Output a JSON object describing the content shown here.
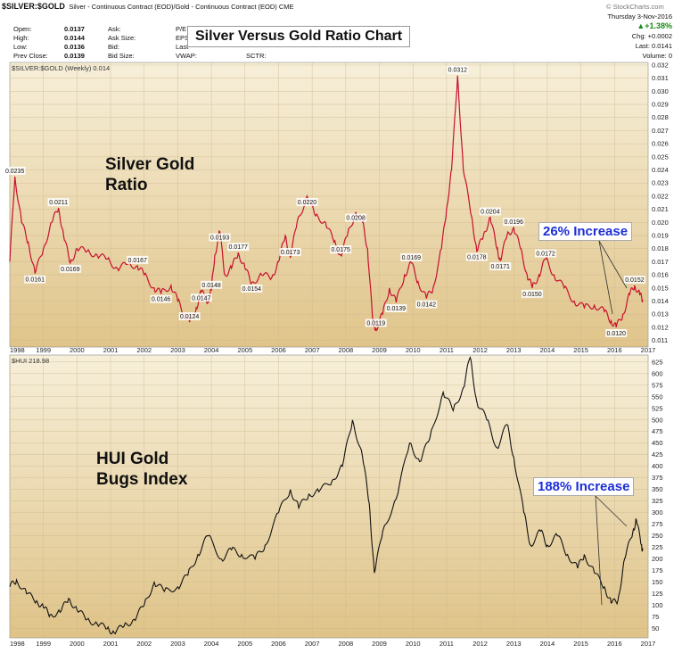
{
  "header": {
    "symbol": "$SILVER:$GOLD",
    "description": "Silver - Continuous Contract (EOD)/Gold - Continuous Contract (EOD) CME",
    "watermark": "© StockCharts.com",
    "date": "Thursday 3-Nov-2016",
    "change_pct": "▲+1.38%",
    "chg": "Chg: +0.0002",
    "last": "Last: 0.0141",
    "volume": "Volume: 0",
    "stats": [
      {
        "label": "Open:",
        "value": "0.0137"
      },
      {
        "label": "High:",
        "value": "0.0144"
      },
      {
        "label": "Low:",
        "value": "0.0136"
      },
      {
        "label": "Prev Close:",
        "value": "0.0139"
      }
    ],
    "stats2": [
      "Ask:",
      "Ask Size:",
      "Bid:",
      "Bid Size:"
    ],
    "stats3": [
      "P/E",
      "EPS",
      "Last",
      "VWAP:"
    ],
    "sctr": "SCTR:"
  },
  "title": "Silver Versus Gold Ratio Chart",
  "chart_data": [
    {
      "type": "line",
      "panel_label": "$SILVER:$GOLD (Weekly) 0.014",
      "big_label": [
        "Silver Gold",
        "Ratio"
      ],
      "annotation": "26% Increase",
      "x_ticks": [
        "1998",
        "1999",
        "2000",
        "2001",
        "2002",
        "2003",
        "2004",
        "2005",
        "2006",
        "2007",
        "2008",
        "2009",
        "2010",
        "2011",
        "2012",
        "2013",
        "2014",
        "2015",
        "2016",
        "2017"
      ],
      "ylim": [
        0.0105,
        0.0322
      ],
      "y_ticks": [
        "0.011",
        "0.012",
        "0.013",
        "0.014",
        "0.015",
        "0.016",
        "0.017",
        "0.018",
        "0.019",
        "0.020",
        "0.021",
        "0.022",
        "0.023",
        "0.024",
        "0.025",
        "0.026",
        "0.027",
        "0.028",
        "0.029",
        "0.030",
        "0.031",
        "0.032"
      ],
      "points": [
        [
          1998.0,
          0.017
        ],
        [
          1998.15,
          0.0235
        ],
        [
          1998.35,
          0.02
        ],
        [
          1998.55,
          0.0185
        ],
        [
          1998.75,
          0.0161
        ],
        [
          1999.0,
          0.018
        ],
        [
          1999.25,
          0.02
        ],
        [
          1999.45,
          0.0211
        ],
        [
          1999.6,
          0.019
        ],
        [
          1999.8,
          0.0169
        ],
        [
          2000.0,
          0.018
        ],
        [
          2000.3,
          0.0178
        ],
        [
          2000.6,
          0.0175
        ],
        [
          2000.9,
          0.0172
        ],
        [
          2001.2,
          0.0165
        ],
        [
          2001.5,
          0.0168
        ],
        [
          2001.8,
          0.0167
        ],
        [
          2002.0,
          0.016
        ],
        [
          2002.3,
          0.015
        ],
        [
          2002.5,
          0.0146
        ],
        [
          2002.8,
          0.0152
        ],
        [
          2003.0,
          0.014
        ],
        [
          2003.2,
          0.013
        ],
        [
          2003.35,
          0.0124
        ],
        [
          2003.55,
          0.0135
        ],
        [
          2003.7,
          0.0147
        ],
        [
          2003.9,
          0.014
        ],
        [
          2004.0,
          0.0148
        ],
        [
          2004.1,
          0.0175
        ],
        [
          2004.25,
          0.0193
        ],
        [
          2004.4,
          0.016
        ],
        [
          2004.6,
          0.0165
        ],
        [
          2004.8,
          0.0177
        ],
        [
          2005.0,
          0.0165
        ],
        [
          2005.2,
          0.0154
        ],
        [
          2005.5,
          0.016
        ],
        [
          2005.8,
          0.0158
        ],
        [
          2006.0,
          0.017
        ],
        [
          2006.2,
          0.019
        ],
        [
          2006.35,
          0.0173
        ],
        [
          2006.55,
          0.02
        ],
        [
          2006.85,
          0.022
        ],
        [
          2007.1,
          0.0205
        ],
        [
          2007.4,
          0.02
        ],
        [
          2007.65,
          0.0185
        ],
        [
          2007.85,
          0.0175
        ],
        [
          2008.05,
          0.019
        ],
        [
          2008.3,
          0.0208
        ],
        [
          2008.5,
          0.02
        ],
        [
          2008.65,
          0.018
        ],
        [
          2008.8,
          0.0125
        ],
        [
          2008.9,
          0.0119
        ],
        [
          2009.1,
          0.013
        ],
        [
          2009.3,
          0.015
        ],
        [
          2009.5,
          0.0139
        ],
        [
          2009.75,
          0.016
        ],
        [
          2009.95,
          0.0169
        ],
        [
          2010.15,
          0.0155
        ],
        [
          2010.4,
          0.0142
        ],
        [
          2010.6,
          0.015
        ],
        [
          2010.85,
          0.018
        ],
        [
          2011.0,
          0.021
        ],
        [
          2011.15,
          0.024
        ],
        [
          2011.33,
          0.0312
        ],
        [
          2011.5,
          0.024
        ],
        [
          2011.75,
          0.0204
        ],
        [
          2011.9,
          0.0178
        ],
        [
          2012.1,
          0.019
        ],
        [
          2012.3,
          0.0204
        ],
        [
          2012.5,
          0.018
        ],
        [
          2012.6,
          0.0171
        ],
        [
          2012.8,
          0.019
        ],
        [
          2013.0,
          0.0196
        ],
        [
          2013.2,
          0.018
        ],
        [
          2013.4,
          0.016
        ],
        [
          2013.55,
          0.015
        ],
        [
          2013.75,
          0.016
        ],
        [
          2013.95,
          0.0172
        ],
        [
          2014.2,
          0.016
        ],
        [
          2014.5,
          0.015
        ],
        [
          2014.8,
          0.014
        ],
        [
          2015.1,
          0.0135
        ],
        [
          2015.4,
          0.0137
        ],
        [
          2015.7,
          0.0132
        ],
        [
          2015.9,
          0.0125
        ],
        [
          2016.05,
          0.012
        ],
        [
          2016.25,
          0.013
        ],
        [
          2016.45,
          0.0145
        ],
        [
          2016.6,
          0.0152
        ],
        [
          2016.75,
          0.0145
        ],
        [
          2016.84,
          0.0141
        ]
      ],
      "point_labels": [
        {
          "x": 1998.15,
          "y": 0.0235,
          "text": "0.0235"
        },
        {
          "x": 1998.75,
          "y": 0.0161,
          "text": "0.0161"
        },
        {
          "x": 1999.45,
          "y": 0.0211,
          "text": "0.0211"
        },
        {
          "x": 1999.8,
          "y": 0.0169,
          "text": "0.0169"
        },
        {
          "x": 2001.8,
          "y": 0.0167,
          "text": "0.0167"
        },
        {
          "x": 2002.5,
          "y": 0.0146,
          "text": "0.0146"
        },
        {
          "x": 2003.35,
          "y": 0.0124,
          "text": "0.0124"
        },
        {
          "x": 2003.7,
          "y": 0.0147,
          "text": "0.0147"
        },
        {
          "x": 2004.0,
          "y": 0.0148,
          "text": "0.0148"
        },
        {
          "x": 2004.25,
          "y": 0.0193,
          "text": "0.0193"
        },
        {
          "x": 2004.8,
          "y": 0.0177,
          "text": "0.0177"
        },
        {
          "x": 2005.2,
          "y": 0.0154,
          "text": "0.0154"
        },
        {
          "x": 2006.35,
          "y": 0.0173,
          "text": "0.0173"
        },
        {
          "x": 2006.85,
          "y": 0.022,
          "text": "0.0220"
        },
        {
          "x": 2007.85,
          "y": 0.0175,
          "text": "0.0175"
        },
        {
          "x": 2008.3,
          "y": 0.0208,
          "text": "0.0208"
        },
        {
          "x": 2008.9,
          "y": 0.0119,
          "text": "0.0119"
        },
        {
          "x": 2009.5,
          "y": 0.0139,
          "text": "0.0139"
        },
        {
          "x": 2009.95,
          "y": 0.0169,
          "text": "0.0169"
        },
        {
          "x": 2010.4,
          "y": 0.0142,
          "text": "0.0142"
        },
        {
          "x": 2011.33,
          "y": 0.0312,
          "text": "0.0312"
        },
        {
          "x": 2011.9,
          "y": 0.0178,
          "text": "0.0178"
        },
        {
          "x": 2012.3,
          "y": 0.0204,
          "text": "0.0204"
        },
        {
          "x": 2012.6,
          "y": 0.0171,
          "text": "0.0171"
        },
        {
          "x": 2013.0,
          "y": 0.0196,
          "text": "0.0196"
        },
        {
          "x": 2013.55,
          "y": 0.015,
          "text": "0.0150"
        },
        {
          "x": 2013.95,
          "y": 0.0172,
          "text": "0.0172"
        },
        {
          "x": 2016.05,
          "y": 0.012,
          "text": "0.0120"
        },
        {
          "x": 2016.6,
          "y": 0.0152,
          "text": "0.0152"
        }
      ]
    },
    {
      "type": "line",
      "panel_label": "$HUI 218.98",
      "big_label": [
        "HUI Gold",
        "Bugs Index"
      ],
      "annotation": "188% Increase",
      "x_ticks": [
        "1998",
        "1999",
        "2000",
        "2001",
        "2002",
        "2003",
        "2004",
        "2005",
        "2006",
        "2007",
        "2008",
        "2009",
        "2010",
        "2011",
        "2012",
        "2013",
        "2014",
        "2015",
        "2016",
        "2017"
      ],
      "ylim": [
        30,
        640
      ],
      "y_ticks": [
        "50",
        "75",
        "100",
        "125",
        "150",
        "175",
        "200",
        "225",
        "250",
        "275",
        "300",
        "325",
        "350",
        "375",
        "400",
        "425",
        "450",
        "475",
        "500",
        "525",
        "550",
        "575",
        "600",
        "625"
      ],
      "points": [
        [
          1998.0,
          140
        ],
        [
          1998.2,
          155
        ],
        [
          1998.5,
          125
        ],
        [
          1998.8,
          110
        ],
        [
          1999.0,
          95
        ],
        [
          1999.2,
          80
        ],
        [
          1999.5,
          85
        ],
        [
          1999.75,
          115
        ],
        [
          2000.0,
          90
        ],
        [
          2000.3,
          70
        ],
        [
          2000.6,
          60
        ],
        [
          2000.9,
          50
        ],
        [
          2001.1,
          42
        ],
        [
          2001.4,
          55
        ],
        [
          2001.7,
          70
        ],
        [
          2002.0,
          100
        ],
        [
          2002.3,
          150
        ],
        [
          2002.6,
          130
        ],
        [
          2003.0,
          140
        ],
        [
          2003.3,
          165
        ],
        [
          2003.6,
          210
        ],
        [
          2003.9,
          250
        ],
        [
          2004.3,
          200
        ],
        [
          2004.6,
          220
        ],
        [
          2004.9,
          210
        ],
        [
          2005.3,
          200
        ],
        [
          2005.6,
          230
        ],
        [
          2006.0,
          300
        ],
        [
          2006.35,
          350
        ],
        [
          2006.6,
          310
        ],
        [
          2006.9,
          340
        ],
        [
          2007.2,
          345
        ],
        [
          2007.6,
          370
        ],
        [
          2007.9,
          400
        ],
        [
          2008.2,
          500
        ],
        [
          2008.5,
          420
        ],
        [
          2008.7,
          320
        ],
        [
          2008.85,
          170
        ],
        [
          2009.1,
          260
        ],
        [
          2009.5,
          330
        ],
        [
          2009.9,
          450
        ],
        [
          2010.2,
          410
        ],
        [
          2010.5,
          460
        ],
        [
          2010.9,
          560
        ],
        [
          2011.2,
          520
        ],
        [
          2011.5,
          570
        ],
        [
          2011.7,
          635
        ],
        [
          2011.9,
          540
        ],
        [
          2012.2,
          500
        ],
        [
          2012.5,
          440
        ],
        [
          2012.8,
          490
        ],
        [
          2013.0,
          420
        ],
        [
          2013.3,
          300
        ],
        [
          2013.5,
          230
        ],
        [
          2013.8,
          260
        ],
        [
          2014.0,
          230
        ],
        [
          2014.3,
          250
        ],
        [
          2014.6,
          210
        ],
        [
          2014.9,
          180
        ],
        [
          2015.1,
          210
        ],
        [
          2015.4,
          170
        ],
        [
          2015.7,
          140
        ],
        [
          2015.9,
          105
        ],
        [
          2016.1,
          110
        ],
        [
          2016.3,
          200
        ],
        [
          2016.55,
          260
        ],
        [
          2016.65,
          285
        ],
        [
          2016.8,
          230
        ],
        [
          2016.84,
          219
        ]
      ]
    }
  ]
}
